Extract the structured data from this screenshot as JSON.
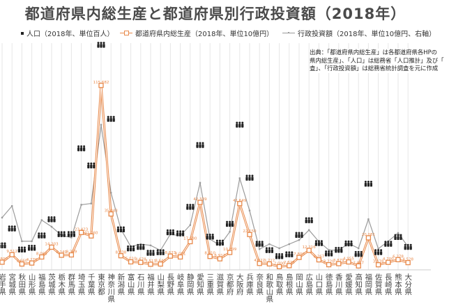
{
  "colors": {
    "population": "#222222",
    "gdp": "#e8894a",
    "invest": "#9b9b9b",
    "title": "#4a4a4a"
  },
  "icons": {
    "population": "person-group-icon"
  },
  "chart_data": {
    "type": "line",
    "title": "都道府県内総生産と都道府県別行政投資額（2018年）",
    "legend": {
      "population": "人口（2018年、単位百人）",
      "gdp": "都道府県内総生産（2018年、単位10億円）",
      "invest": "行政投資額（2018年、単位10億円、右軸）"
    },
    "note": [
      "出典：「都道府県内総生産」は各都道府県各HPの",
      "県内総生産」、「人口」は総務省「人口推計」及び「",
      "査」、「行政投資額」は総務省統計調査を元に作成"
    ],
    "categories": [
      "岩手県",
      "宮城県",
      "秋田県",
      "山形県",
      "福島県",
      "茨城県",
      "栃木県",
      "群馬県",
      "埼玉県",
      "千葉県",
      "東京都",
      "神奈川県",
      "新潟県",
      "富山県",
      "石川県",
      "福井県",
      "山梨県",
      "長野県",
      "岐阜県",
      "静岡県",
      "愛知県",
      "三重県",
      "滋賀県",
      "京都府",
      "大阪府",
      "兵庫県",
      "奈良県",
      "和歌山県",
      "鳥取県",
      "島根県",
      "岡山県",
      "広島県",
      "山口県",
      "徳島県",
      "香川県",
      "愛媛県",
      "高知県",
      "福岡県",
      "佐賀県",
      "長崎県",
      "熊本県",
      "大分県"
    ],
    "series": [
      {
        "name": "人口（2018年、単位百人）",
        "marker": "person-group-icon",
        "values": [
          12410,
          23030,
          9810,
          10900,
          18640,
          28770,
          19460,
          19520,
          73300,
          62550,
          138220,
          91770,
          22460,
          10500,
          11430,
          7740,
          8110,
          20630,
          19970,
          36590,
          75370,
          17910,
          14120,
          25910,
          88130,
          54840,
          13390,
          9450,
          5650,
          6800,
          18980,
          28170,
          13830,
          7360,
          9620,
          13640,
          7060,
          51070,
          8190,
          13410,
          17650,
          11430
        ]
      },
      {
        "name": "都道府県内総生産（2018年、単位10億円）",
        "marker": "square",
        "values": [
          4800,
          9512,
          3660,
          4270,
          8068,
          14203,
          9149,
          9369,
          23423,
          21260,
          115682,
          35043,
          8838,
          5010,
          4678,
          3513,
          3640,
          8623,
          8081,
          17680,
          42339,
          8410,
          6917,
          10899,
          41549,
          22150,
          4022,
          3727,
          2000,
          2628,
          7800,
          12216,
          6267,
          3220,
          3879,
          4955,
          2447,
          20081,
          3178,
          4700,
          6378,
          4528
        ]
      },
      {
        "name": "行政投資額（2018年、単位10億円、右軸）",
        "marker": "dot",
        "values": [
          1260,
          1540,
          690,
          690,
          1200,
          1040,
          830,
          780,
          1570,
          1600,
          3500,
          1860,
          980,
          560,
          620,
          590,
          470,
          860,
          820,
          1080,
          2100,
          740,
          590,
          920,
          2210,
          1430,
          500,
          620,
          520,
          620,
          720,
          960,
          680,
          480,
          470,
          640,
          520,
          1220,
          510,
          690,
          890,
          560
        ]
      }
    ],
    "note_axis": "右軸"
  }
}
